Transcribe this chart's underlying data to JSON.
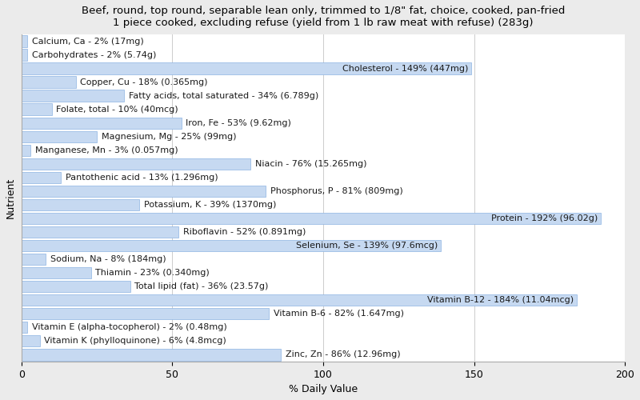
{
  "title": "Beef, round, top round, separable lean only, trimmed to 1/8\" fat, choice, cooked, pan-fried\n1 piece cooked, excluding refuse (yield from 1 lb raw meat with refuse) (283g)",
  "xlabel": "% Daily Value",
  "ylabel": "Nutrient",
  "xlim": [
    0,
    200
  ],
  "xticks": [
    0,
    50,
    100,
    150,
    200
  ],
  "nutrients": [
    {
      "label": "Calcium, Ca - 2% (17mg)",
      "value": 2
    },
    {
      "label": "Carbohydrates - 2% (5.74g)",
      "value": 2
    },
    {
      "label": "Cholesterol - 149% (447mg)",
      "value": 149
    },
    {
      "label": "Copper, Cu - 18% (0.365mg)",
      "value": 18
    },
    {
      "label": "Fatty acids, total saturated - 34% (6.789g)",
      "value": 34
    },
    {
      "label": "Folate, total - 10% (40mcg)",
      "value": 10
    },
    {
      "label": "Iron, Fe - 53% (9.62mg)",
      "value": 53
    },
    {
      "label": "Magnesium, Mg - 25% (99mg)",
      "value": 25
    },
    {
      "label": "Manganese, Mn - 3% (0.057mg)",
      "value": 3
    },
    {
      "label": "Niacin - 76% (15.265mg)",
      "value": 76
    },
    {
      "label": "Pantothenic acid - 13% (1.296mg)",
      "value": 13
    },
    {
      "label": "Phosphorus, P - 81% (809mg)",
      "value": 81
    },
    {
      "label": "Potassium, K - 39% (1370mg)",
      "value": 39
    },
    {
      "label": "Protein - 192% (96.02g)",
      "value": 192
    },
    {
      "label": "Riboflavin - 52% (0.891mg)",
      "value": 52
    },
    {
      "label": "Selenium, Se - 139% (97.6mcg)",
      "value": 139
    },
    {
      "label": "Sodium, Na - 8% (184mg)",
      "value": 8
    },
    {
      "label": "Thiamin - 23% (0.340mg)",
      "value": 23
    },
    {
      "label": "Total lipid (fat) - 36% (23.57g)",
      "value": 36
    },
    {
      "label": "Vitamin B-12 - 184% (11.04mcg)",
      "value": 184
    },
    {
      "label": "Vitamin B-6 - 82% (1.647mg)",
      "value": 82
    },
    {
      "label": "Vitamin E (alpha-tocopherol) - 2% (0.48mg)",
      "value": 2
    },
    {
      "label": "Vitamin K (phylloquinone) - 6% (4.8mcg)",
      "value": 6
    },
    {
      "label": "Zinc, Zn - 86% (12.96mg)",
      "value": 86
    }
  ],
  "bar_color": "#c6d9f1",
  "bar_edge_color": "#8db3e2",
  "background_color": "#ebebeb",
  "plot_bg_color": "#ffffff",
  "title_fontsize": 9.5,
  "label_fontsize": 8,
  "tick_fontsize": 9,
  "grid_color": "#cccccc",
  "label_threshold": 100
}
